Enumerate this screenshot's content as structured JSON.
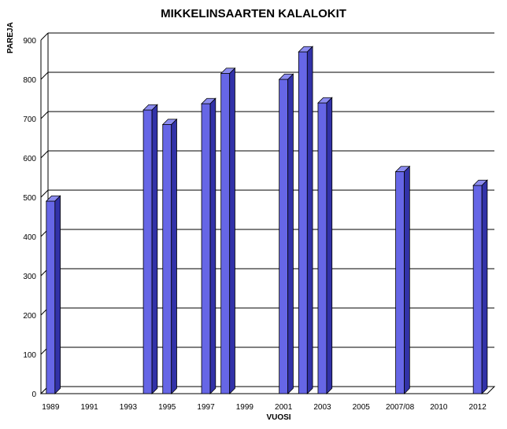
{
  "chart_data": {
    "type": "bar",
    "title": "MIKKELINSAARTEN KALALOKIT",
    "xlabel": "VUOSI",
    "ylabel": "PAREJA",
    "ylim": [
      0,
      900
    ],
    "yticks": [
      0,
      100,
      200,
      300,
      400,
      500,
      600,
      700,
      800,
      900
    ],
    "categories": [
      "1989",
      "1990",
      "1991",
      "1992",
      "1993",
      "1994",
      "1995",
      "1996",
      "1997",
      "1998",
      "1999",
      "2000",
      "2001",
      "2002",
      "2003",
      "2004",
      "2005",
      "2006",
      "2007/08",
      "2009",
      "2010",
      "2011",
      "2012"
    ],
    "tick_labels": [
      "1989",
      "",
      "1991",
      "",
      "1993",
      "",
      "1995",
      "",
      "1997",
      "",
      "1999",
      "",
      "2001",
      "",
      "2003",
      "",
      "2005",
      "",
      "2007/08",
      "",
      "2010",
      "",
      "2012"
    ],
    "values": [
      490,
      null,
      null,
      null,
      null,
      722,
      685,
      null,
      738,
      815,
      null,
      null,
      800,
      870,
      740,
      null,
      null,
      null,
      565,
      null,
      null,
      null,
      530
    ],
    "grid": true,
    "bar_color": "#6666e6"
  }
}
